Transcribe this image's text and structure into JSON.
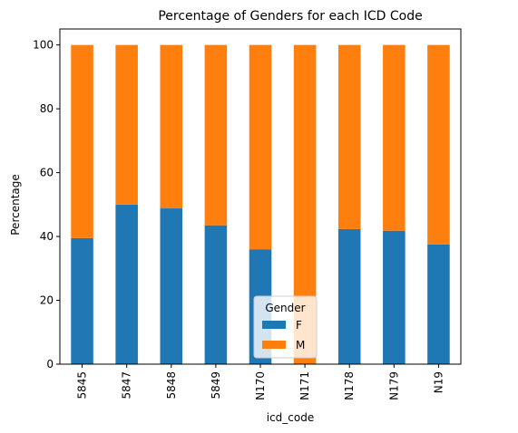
{
  "chart_data": {
    "type": "bar",
    "stacked": true,
    "title": "Percentage of Genders for each ICD Code",
    "xlabel": "icd_code",
    "ylabel": "Percentage",
    "ylim": [
      0,
      105
    ],
    "yticks": [
      0,
      20,
      40,
      60,
      80,
      100
    ],
    "categories": [
      "5845",
      "5847",
      "5848",
      "5849",
      "N170",
      "N171",
      "N178",
      "N179",
      "N19"
    ],
    "series": [
      {
        "name": "F",
        "color": "#1f77b4",
        "values": [
          39.5,
          50.0,
          48.8,
          43.5,
          36.0,
          0.0,
          42.3,
          41.8,
          37.5
        ]
      },
      {
        "name": "M",
        "color": "#ff7f0e",
        "values": [
          60.5,
          50.0,
          51.2,
          56.5,
          64.0,
          100.0,
          57.7,
          58.2,
          62.5
        ]
      }
    ],
    "legend": {
      "title": "Gender",
      "position": "lower-center"
    },
    "grid": false
  }
}
